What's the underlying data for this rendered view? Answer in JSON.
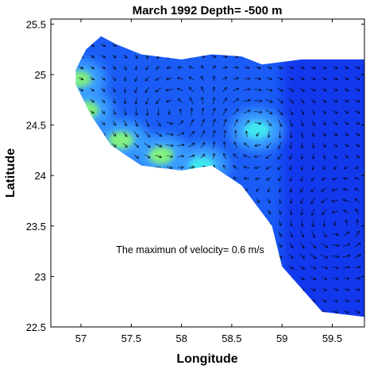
{
  "chart_data": {
    "type": "heatmap",
    "title": "March 1992  Depth=  -500 m",
    "xlabel": "Longitude",
    "ylabel": "Latitude",
    "xlim": [
      56.7,
      59.82
    ],
    "ylim": [
      22.5,
      25.55
    ],
    "xticks": [
      57,
      57.5,
      58,
      58.5,
      59,
      59.5
    ],
    "xtick_labels": [
      "57",
      "57.5",
      "58",
      "58.5",
      "59",
      "59.5"
    ],
    "yticks": [
      22.5,
      23,
      23.5,
      24,
      24.5,
      25,
      25.5
    ],
    "ytick_labels": [
      "22.5",
      "23",
      "23.5",
      "24",
      "24.5",
      "25",
      "25.5"
    ],
    "annotation": "The maximun of velocity= 0.6 m/s",
    "annotation_position": {
      "x": 57.35,
      "y": 23.23
    },
    "max_velocity_ms": 0.6,
    "grid": false,
    "colormap": "jet",
    "colors": {
      "deep_blue": "#0a1ee6",
      "blue": "#1a5cf5",
      "light_blue": "#3ba0ff",
      "cyan": "#40e6f0",
      "green": "#80f080"
    },
    "domain_outline": [
      [
        56.95,
        25.05
      ],
      [
        57.05,
        25.25
      ],
      [
        57.2,
        25.38
      ],
      [
        57.35,
        25.3
      ],
      [
        57.6,
        25.2
      ],
      [
        58.0,
        25.15
      ],
      [
        58.3,
        25.2
      ],
      [
        58.6,
        25.18
      ],
      [
        58.8,
        25.1
      ],
      [
        59.2,
        25.15
      ],
      [
        59.82,
        25.15
      ],
      [
        59.82,
        22.6
      ],
      [
        59.4,
        22.65
      ],
      [
        59.0,
        23.1
      ],
      [
        58.9,
        23.5
      ],
      [
        58.6,
        23.9
      ],
      [
        58.3,
        24.1
      ],
      [
        58.0,
        24.05
      ],
      [
        57.6,
        24.1
      ],
      [
        57.3,
        24.3
      ],
      [
        57.1,
        24.6
      ],
      [
        56.95,
        24.9
      ]
    ],
    "gyres": [
      {
        "x": 57.9,
        "y": 24.6,
        "sense": "cyclonic"
      },
      {
        "x": 58.75,
        "y": 24.45,
        "sense": "anticyclonic"
      },
      {
        "x": 59.55,
        "y": 23.5,
        "sense": "cyclonic"
      }
    ],
    "hotspots": [
      {
        "x": 58.75,
        "y": 24.45,
        "speed": 0.45
      },
      {
        "x": 57.4,
        "y": 24.35,
        "speed": 0.55
      },
      {
        "x": 57.8,
        "y": 24.2,
        "speed": 0.5
      },
      {
        "x": 58.2,
        "y": 24.1,
        "speed": 0.35
      },
      {
        "x": 56.98,
        "y": 24.95,
        "speed": 0.6
      },
      {
        "x": 57.05,
        "y": 24.65,
        "speed": 0.5
      }
    ]
  }
}
